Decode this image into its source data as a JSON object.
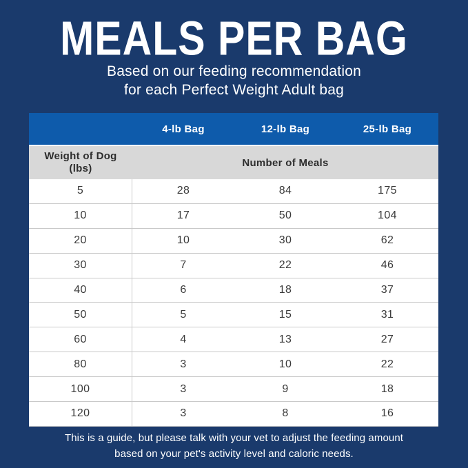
{
  "page": {
    "title": "MEALS PER BAG",
    "subtitle_line1": "Based on our feeding recommendation",
    "subtitle_line2": "for each Perfect Weight Adult bag",
    "footer_line1": "This is a guide, but please talk with your vet to adjust the feeding amount",
    "footer_line2": "based on your pet's activity level and caloric needs."
  },
  "colors": {
    "background_navy": "#1a3a6c",
    "header_bar_blue": "#0e5bab",
    "subhead_gray": "#d8d8d8",
    "row_white": "#ffffff",
    "row_border_gray": "#c9c9c9",
    "table_text_dark": "#3a3a3a",
    "white_text": "#ffffff"
  },
  "table": {
    "bag_columns": [
      "4-lb Bag",
      "12-lb Bag",
      "25-lb Bag"
    ],
    "weight_header_line1": "Weight of Dog",
    "weight_header_line2": "(lbs)",
    "meals_header": "Number of Meals",
    "rows": [
      {
        "weight": "5",
        "meals": [
          "28",
          "84",
          "175"
        ]
      },
      {
        "weight": "10",
        "meals": [
          "17",
          "50",
          "104"
        ]
      },
      {
        "weight": "20",
        "meals": [
          "10",
          "30",
          "62"
        ]
      },
      {
        "weight": "30",
        "meals": [
          "7",
          "22",
          "46"
        ]
      },
      {
        "weight": "40",
        "meals": [
          "6",
          "18",
          "37"
        ]
      },
      {
        "weight": "50",
        "meals": [
          "5",
          "15",
          "31"
        ]
      },
      {
        "weight": "60",
        "meals": [
          "4",
          "13",
          "27"
        ]
      },
      {
        "weight": "80",
        "meals": [
          "3",
          "10",
          "22"
        ]
      },
      {
        "weight": "100",
        "meals": [
          "3",
          "9",
          "18"
        ]
      },
      {
        "weight": "120",
        "meals": [
          "3",
          "8",
          "16"
        ]
      }
    ]
  },
  "chart_data": {
    "type": "table",
    "title": "MEALS PER BAG",
    "subtitle": "Based on our feeding recommendation for each Perfect Weight Adult bag",
    "columns": [
      "Weight of Dog (lbs)",
      "4-lb Bag",
      "12-lb Bag",
      "25-lb Bag"
    ],
    "value_unit": "Number of Meals",
    "rows": [
      [
        5,
        28,
        84,
        175
      ],
      [
        10,
        17,
        50,
        104
      ],
      [
        20,
        10,
        30,
        62
      ],
      [
        30,
        7,
        22,
        46
      ],
      [
        40,
        6,
        18,
        37
      ],
      [
        50,
        5,
        15,
        31
      ],
      [
        60,
        4,
        13,
        27
      ],
      [
        80,
        3,
        10,
        22
      ],
      [
        100,
        3,
        9,
        18
      ],
      [
        120,
        3,
        8,
        16
      ]
    ],
    "note": "This is a guide, but please talk with your vet to adjust the feeding amount based on your pet's activity level and caloric needs.",
    "layout": "header row of bag sizes on blue bar; gray subheader band; 10 white data rows"
  }
}
